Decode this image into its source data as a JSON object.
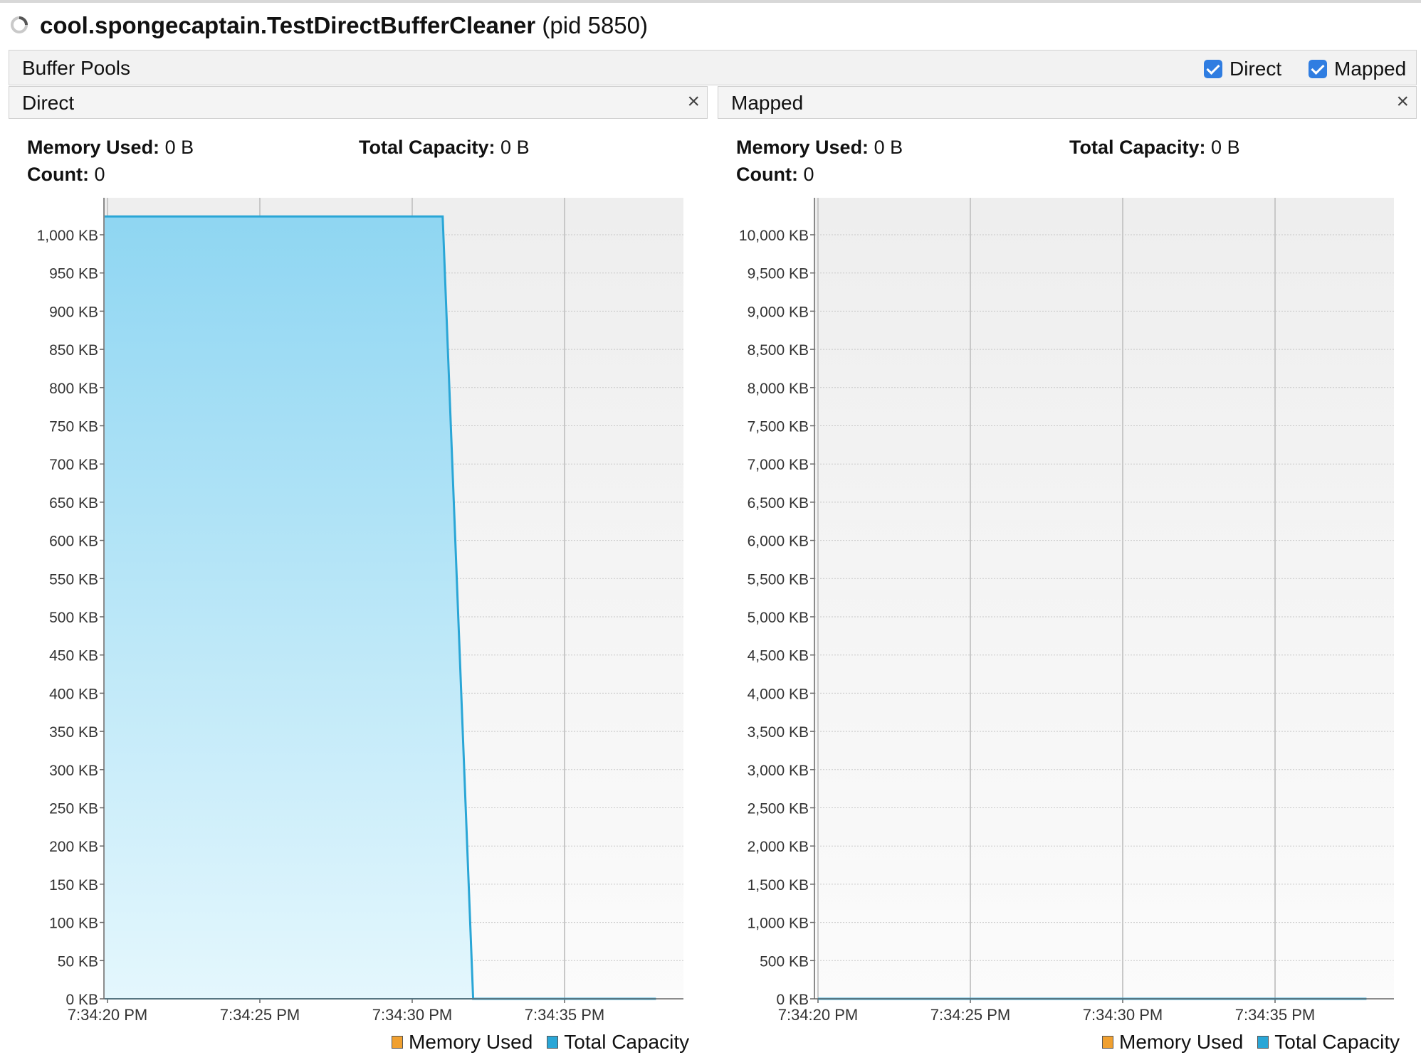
{
  "window": {
    "app_name": "cool.spongecaptain.TestDirectBufferCleaner",
    "pid_text": "(pid 5850)"
  },
  "section": {
    "title": "Buffer Pools",
    "checkboxes": [
      {
        "label": "Direct",
        "checked": true
      },
      {
        "label": "Mapped",
        "checked": true
      }
    ]
  },
  "panels": {
    "direct": {
      "title": "Direct",
      "close_glyph": "×",
      "memory_used_label": "Memory Used:",
      "memory_used_value": "0 B",
      "total_capacity_label": "Total Capacity:",
      "total_capacity_value": "0 B",
      "count_label": "Count:",
      "count_value": "0"
    },
    "mapped": {
      "title": "Mapped",
      "close_glyph": "×",
      "memory_used_label": "Memory Used:",
      "memory_used_value": "0 B",
      "total_capacity_label": "Total Capacity:",
      "total_capacity_value": "0 B",
      "count_label": "Count:",
      "count_value": "0"
    }
  },
  "legend": {
    "memory_used": "Memory Used",
    "total_capacity": "Total Capacity"
  },
  "colors": {
    "memory_used": "#f0a030",
    "total_capacity": "#2aa6d6",
    "fill_top": "#8fd6f2",
    "fill_bottom": "#e4f7fd",
    "plot_bg": "#f0f0f0"
  },
  "chart_data": [
    {
      "type": "area",
      "panel": "Direct",
      "x": [
        "7:34:19.7",
        "7:34:20",
        "7:34:31",
        "7:34:32",
        "7:34:38"
      ],
      "xticks": [
        "7:34:20 PM",
        "7:34:25 PM",
        "7:34:30 PM",
        "7:34:35 PM"
      ],
      "series": [
        {
          "name": "Memory Used",
          "values": [
            0,
            0,
            0,
            0,
            0
          ]
        },
        {
          "name": "Total Capacity",
          "values": [
            1024,
            1024,
            1024,
            0,
            0
          ]
        }
      ],
      "y_unit": "KB",
      "ylim": [
        0,
        1000
      ],
      "yticks": [
        "0 KB",
        "50 KB",
        "100 KB",
        "150 KB",
        "200 KB",
        "250 KB",
        "300 KB",
        "350 KB",
        "400 KB",
        "450 KB",
        "500 KB",
        "550 KB",
        "600 KB",
        "650 KB",
        "700 KB",
        "750 KB",
        "800 KB",
        "850 KB",
        "900 KB",
        "950 KB",
        "1,000 KB"
      ],
      "grid": true,
      "legend": "bottom-right"
    },
    {
      "type": "area",
      "panel": "Mapped",
      "x": [
        "7:34:20",
        "7:34:38"
      ],
      "xticks": [
        "7:34:20 PM",
        "7:34:25 PM",
        "7:34:30 PM",
        "7:34:35 PM"
      ],
      "series": [
        {
          "name": "Memory Used",
          "values": [
            0,
            0
          ]
        },
        {
          "name": "Total Capacity",
          "values": [
            0,
            0
          ]
        }
      ],
      "y_unit": "KB",
      "ylim": [
        0,
        10000
      ],
      "yticks": [
        "0 KB",
        "500 KB",
        "1,000 KB",
        "1,500 KB",
        "2,000 KB",
        "2,500 KB",
        "3,000 KB",
        "3,500 KB",
        "4,000 KB",
        "4,500 KB",
        "5,000 KB",
        "5,500 KB",
        "6,000 KB",
        "6,500 KB",
        "7,000 KB",
        "7,500 KB",
        "8,000 KB",
        "8,500 KB",
        "9,000 KB",
        "9,500 KB",
        "10,000 KB"
      ],
      "grid": true,
      "legend": "bottom-right"
    }
  ]
}
